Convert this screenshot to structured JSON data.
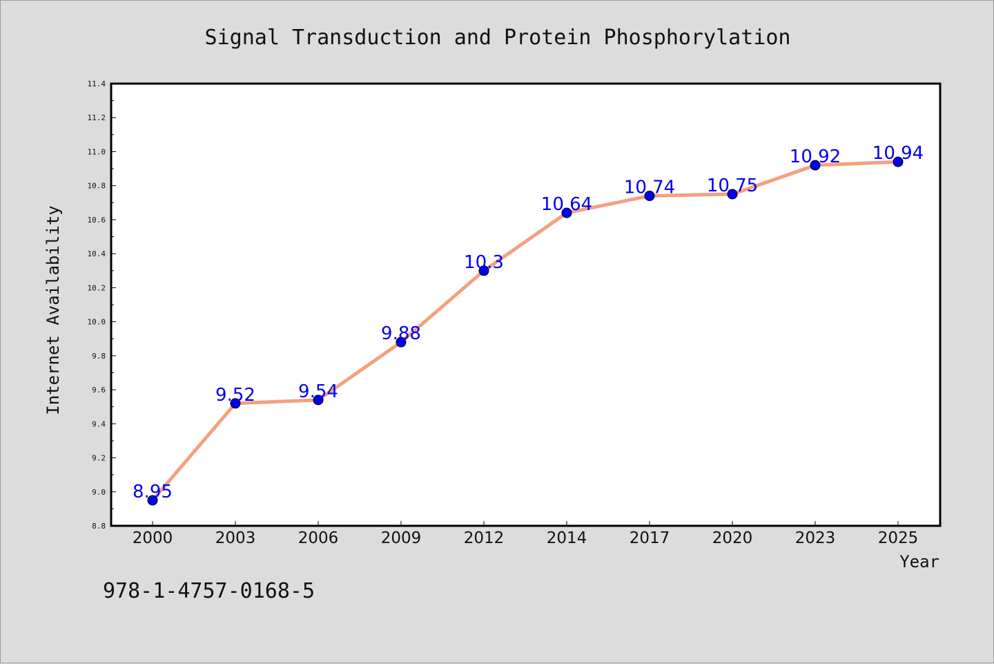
{
  "chart_data": {
    "type": "line",
    "title": "Signal Transduction and Protein Phosphorylation",
    "xlabel": "Year",
    "ylabel": "Internet Availability",
    "categories": [
      "2000",
      "2003",
      "2006",
      "2009",
      "2012",
      "2014",
      "2017",
      "2020",
      "2023",
      "2025"
    ],
    "values": [
      8.95,
      9.52,
      9.54,
      9.88,
      10.3,
      10.64,
      10.74,
      10.75,
      10.92,
      10.94
    ],
    "data_labels": [
      "8.95",
      "9.52",
      "9.54",
      "9.88",
      "10.3",
      "10.64",
      "10.74",
      "10.75",
      "10.92",
      "10.94"
    ],
    "ylim": [
      8.8,
      11.4
    ],
    "yticks": [
      "8.8",
      "9.0",
      "9.2",
      "9.4",
      "9.6",
      "9.8",
      "10.0",
      "10.2",
      "10.4",
      "10.6",
      "10.8",
      "11.0",
      "11.2",
      "11.4"
    ],
    "grid": false,
    "legend": false,
    "colors": {
      "line": "#f5a07e",
      "marker": "#0000ee",
      "marker_edge": "#000000",
      "data_label": "#0000ee",
      "background": "#dcdcdc",
      "plot_background": "#ffffff"
    }
  },
  "footer": {
    "isbn": "978-1-4757-0168-5"
  }
}
